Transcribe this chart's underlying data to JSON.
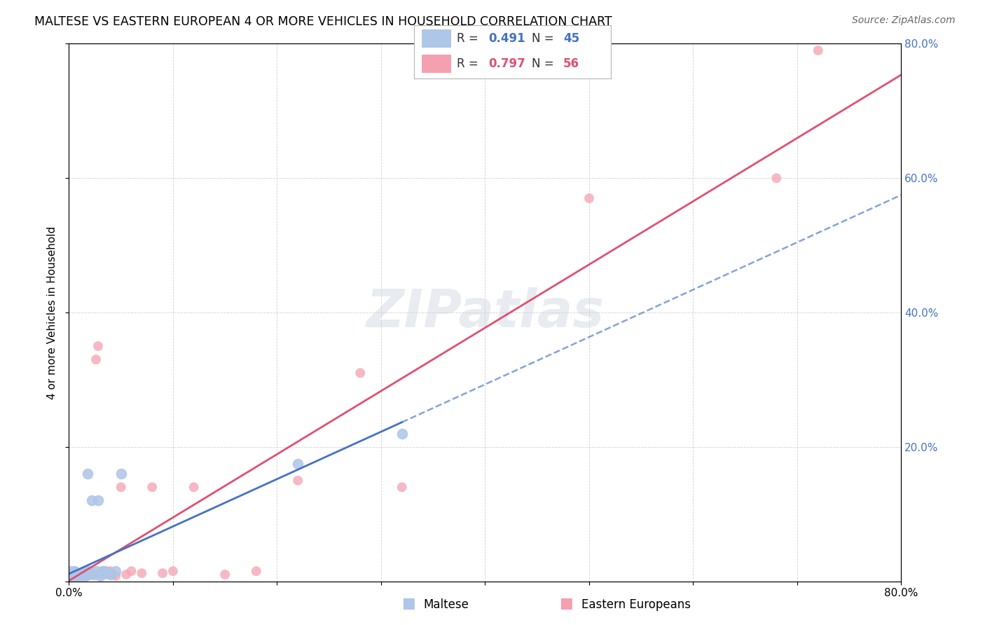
{
  "title": "MALTESE VS EASTERN EUROPEAN 4 OR MORE VEHICLES IN HOUSEHOLD CORRELATION CHART",
  "source": "Source: ZipAtlas.com",
  "ylabel": "4 or more Vehicles in Household",
  "xlim": [
    0,
    0.8
  ],
  "ylim": [
    0,
    0.8
  ],
  "xticks": [
    0.0,
    0.1,
    0.2,
    0.3,
    0.4,
    0.5,
    0.6,
    0.7,
    0.8
  ],
  "yticks": [
    0.0,
    0.2,
    0.4,
    0.6,
    0.8
  ],
  "maltese_R": 0.491,
  "maltese_N": 45,
  "eastern_R": 0.797,
  "eastern_N": 56,
  "maltese_color": "#aec6e8",
  "eastern_color": "#f4a0b0",
  "maltese_line_color": "#4472c4",
  "eastern_line_color": "#e05070",
  "maltese_x": [
    0.001,
    0.001,
    0.001,
    0.002,
    0.002,
    0.003,
    0.003,
    0.003,
    0.004,
    0.004,
    0.004,
    0.005,
    0.005,
    0.005,
    0.006,
    0.006,
    0.007,
    0.007,
    0.008,
    0.009,
    0.01,
    0.011,
    0.012,
    0.013,
    0.014,
    0.015,
    0.016,
    0.017,
    0.018,
    0.019,
    0.02,
    0.022,
    0.024,
    0.026,
    0.028,
    0.03,
    0.032,
    0.034,
    0.036,
    0.038,
    0.04,
    0.045,
    0.05,
    0.22,
    0.32
  ],
  "maltese_y": [
    0.005,
    0.01,
    0.015,
    0.005,
    0.01,
    0.005,
    0.008,
    0.012,
    0.005,
    0.008,
    0.012,
    0.005,
    0.008,
    0.015,
    0.005,
    0.01,
    0.005,
    0.012,
    0.008,
    0.005,
    0.008,
    0.01,
    0.008,
    0.012,
    0.01,
    0.012,
    0.008,
    0.015,
    0.16,
    0.01,
    0.015,
    0.12,
    0.01,
    0.015,
    0.12,
    0.008,
    0.015,
    0.015,
    0.012,
    0.012,
    0.01,
    0.015,
    0.16,
    0.175,
    0.22
  ],
  "eastern_x": [
    0.001,
    0.001,
    0.001,
    0.002,
    0.002,
    0.003,
    0.003,
    0.004,
    0.004,
    0.005,
    0.005,
    0.006,
    0.006,
    0.007,
    0.007,
    0.008,
    0.009,
    0.01,
    0.011,
    0.012,
    0.013,
    0.014,
    0.015,
    0.016,
    0.017,
    0.018,
    0.019,
    0.02,
    0.022,
    0.024,
    0.026,
    0.028,
    0.03,
    0.032,
    0.034,
    0.036,
    0.038,
    0.04,
    0.042,
    0.045,
    0.05,
    0.055,
    0.06,
    0.07,
    0.08,
    0.09,
    0.1,
    0.12,
    0.15,
    0.18,
    0.22,
    0.28,
    0.32,
    0.5,
    0.68,
    0.72
  ],
  "eastern_y": [
    0.005,
    0.008,
    0.012,
    0.005,
    0.01,
    0.005,
    0.008,
    0.005,
    0.01,
    0.005,
    0.008,
    0.01,
    0.015,
    0.005,
    0.01,
    0.008,
    0.005,
    0.008,
    0.01,
    0.01,
    0.005,
    0.008,
    0.01,
    0.012,
    0.008,
    0.01,
    0.012,
    0.012,
    0.01,
    0.012,
    0.33,
    0.35,
    0.01,
    0.015,
    0.01,
    0.015,
    0.01,
    0.015,
    0.01,
    0.008,
    0.14,
    0.01,
    0.015,
    0.012,
    0.14,
    0.012,
    0.015,
    0.14,
    0.01,
    0.015,
    0.15,
    0.31,
    0.14,
    0.57,
    0.6,
    0.79
  ]
}
